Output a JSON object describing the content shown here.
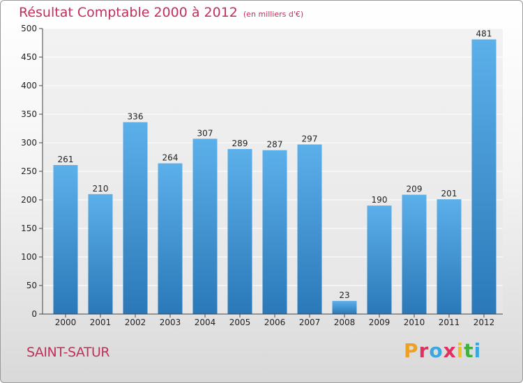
{
  "title": "Résultat Comptable 2000 à 2012",
  "subtitle": "(en milliers d'€)",
  "city": "SAINT-SATUR",
  "brand": {
    "letters": [
      "P",
      "r",
      "o",
      "x",
      "i",
      "t",
      "i"
    ],
    "colors": [
      "#f0a020",
      "#e03060",
      "#3aa8e0",
      "#e03060",
      "#f0c020",
      "#40b040",
      "#3aa8e0"
    ]
  },
  "colors": {
    "title": "#c0305a",
    "bar_top": "#5cb0ea",
    "bar_bottom": "#2a78b8",
    "grid": "#ffffff",
    "axis_text": "#222222"
  },
  "chart_data": {
    "type": "bar",
    "title": "Résultat Comptable 2000 à 2012",
    "ylabel": "(en milliers d'€)",
    "xlabel": "",
    "categories": [
      "2000",
      "2001",
      "2002",
      "2003",
      "2004",
      "2005",
      "2006",
      "2007",
      "2008",
      "2009",
      "2010",
      "2011",
      "2012"
    ],
    "values": [
      261,
      210,
      336,
      264,
      307,
      289,
      287,
      297,
      23,
      190,
      209,
      201,
      481
    ],
    "ylim": [
      0,
      500
    ],
    "yticks": [
      0,
      50,
      100,
      150,
      200,
      250,
      300,
      350,
      400,
      450,
      500
    ],
    "grid": true,
    "data_labels": true
  }
}
